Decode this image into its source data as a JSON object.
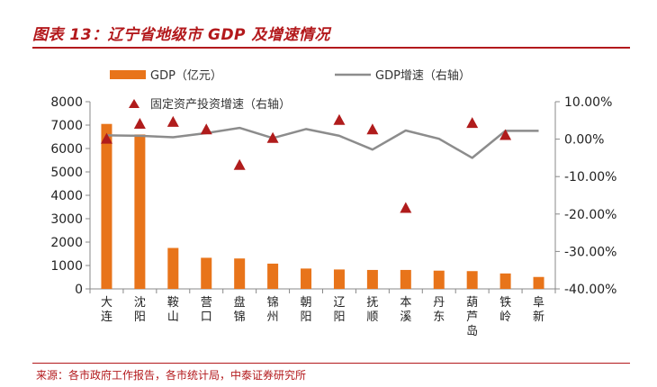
{
  "title": "图表 13：辽宁省地级市 GDP 及增速情况",
  "source": "来源：各市政府工作报告，各市统计局，中泰证券研究所",
  "colors": {
    "accent": "#b3191c",
    "bar": "#e8741a",
    "line": "#8c8c8c",
    "marker": "#b01c1c",
    "axis": "#888888"
  },
  "chart_data": {
    "type": "bar",
    "categories": [
      "大连",
      "沈阳",
      "鞍山",
      "营口",
      "盘锦",
      "锦州",
      "朝阳",
      "辽阳",
      "抚顺",
      "本溪",
      "丹东",
      "葫芦岛",
      "铁岭",
      "阜新"
    ],
    "series": [
      {
        "name": "GDP（亿元）",
        "type": "bar",
        "axis": "left",
        "values": [
          7050,
          6600,
          1750,
          1330,
          1300,
          1080,
          870,
          830,
          810,
          810,
          780,
          760,
          660,
          510
        ]
      },
      {
        "name": "GDP增速（右轴）",
        "type": "line",
        "axis": "right",
        "values": [
          1.0,
          0.9,
          0.5,
          1.6,
          3.0,
          0.3,
          2.7,
          0.9,
          -2.8,
          2.3,
          0.1,
          -5.0,
          2.2,
          2.2
        ]
      },
      {
        "name": "固定资产投资增速（右轴）",
        "type": "scatter",
        "axis": "right",
        "values": [
          0.0,
          4.0,
          4.5,
          2.5,
          -7.0,
          0.2,
          null,
          5.0,
          2.5,
          -18.5,
          null,
          4.2,
          1.0,
          null
        ]
      }
    ],
    "y_left": {
      "min": 0,
      "max": 8000,
      "ticks": [
        0,
        1000,
        2000,
        3000,
        4000,
        5000,
        6000,
        7000,
        8000
      ]
    },
    "y_right": {
      "min": -40,
      "max": 10,
      "ticks": [
        10,
        0,
        -10,
        -20,
        -30,
        -40
      ],
      "tick_labels": [
        "10.00%",
        "0.00%",
        "-10.00%",
        "-20.00%",
        "-30.00%",
        "-40.00%"
      ]
    },
    "legend": [
      "GDP（亿元）",
      "GDP增速（右轴）",
      "固定资产投资增速（右轴）"
    ]
  }
}
